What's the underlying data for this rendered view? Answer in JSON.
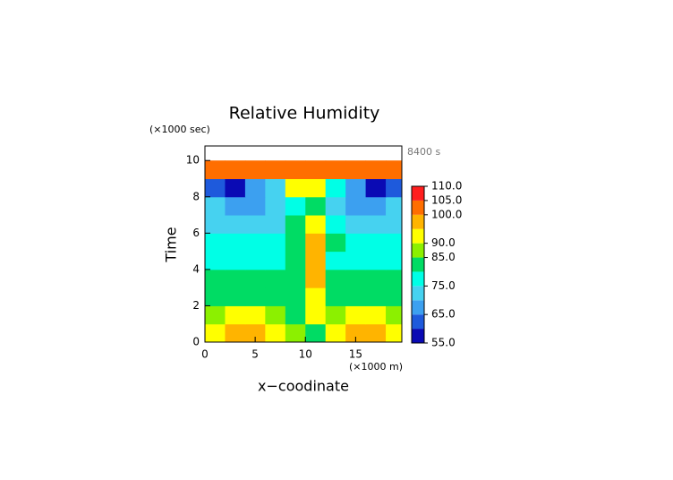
{
  "chart_data": {
    "type": "contour",
    "title": "Relative Humidity",
    "y_unit": "(×1000 sec)",
    "x_unit": "(×1000 m)",
    "time_label": "8400 s",
    "xlabel": "x−coodinate",
    "ylabel": "Time",
    "xlim": [
      0,
      19.6
    ],
    "ylim": [
      0,
      10.8
    ],
    "xticks": [
      0,
      5,
      10,
      15
    ],
    "yticks": [
      0,
      2,
      4,
      6,
      8,
      10
    ],
    "x": [
      1,
      3,
      5,
      7,
      9,
      11,
      13,
      15,
      17,
      19
    ],
    "y": [
      0.5,
      1.5,
      2.5,
      3.5,
      4.5,
      5.5,
      6.5,
      7.5,
      8.5,
      9.5
    ],
    "z": [
      [
        90,
        96,
        95,
        90,
        86,
        84,
        90,
        95,
        96,
        90
      ],
      [
        88,
        92,
        90,
        85,
        82,
        90,
        85,
        90,
        92,
        88
      ],
      [
        82,
        84,
        84,
        80,
        80,
        92,
        80,
        84,
        84,
        82
      ],
      [
        80,
        82,
        82,
        80,
        82,
        96,
        80,
        82,
        82,
        80
      ],
      [
        78,
        78,
        78,
        78,
        80,
        96,
        78,
        78,
        78,
        78
      ],
      [
        76,
        76,
        78,
        76,
        84,
        98,
        82,
        76,
        76,
        76
      ],
      [
        74,
        74,
        74,
        74,
        80,
        92,
        78,
        74,
        74,
        74
      ],
      [
        70,
        66,
        68,
        72,
        78,
        84,
        74,
        68,
        66,
        70
      ],
      [
        62,
        58,
        66,
        74,
        90,
        92,
        76,
        66,
        58,
        62
      ],
      [
        101,
        101,
        101,
        101,
        101,
        101,
        101,
        101,
        101,
        101
      ]
    ],
    "levels": [
      55,
      60,
      65,
      70,
      75,
      80,
      85,
      90,
      95,
      100,
      105,
      110
    ],
    "colors": [
      "#0a0ab4",
      "#1e5adc",
      "#3ca0f0",
      "#46d2f0",
      "#00ffe6",
      "#00dc64",
      "#8cf000",
      "#ffff00",
      "#ffb400",
      "#ff6e00",
      "#ff1e1e"
    ],
    "cbar_ticks": [
      {
        "value": 110,
        "label": "110.0"
      },
      {
        "value": 105,
        "label": "105.0"
      },
      {
        "value": 100,
        "label": "100.0"
      },
      {
        "value": 90,
        "label": "90.0"
      },
      {
        "value": 85,
        "label": "85.0"
      },
      {
        "value": 75,
        "label": "75.0"
      },
      {
        "value": 65,
        "label": "65.0"
      },
      {
        "value": 55,
        "label": "55.0"
      }
    ]
  }
}
